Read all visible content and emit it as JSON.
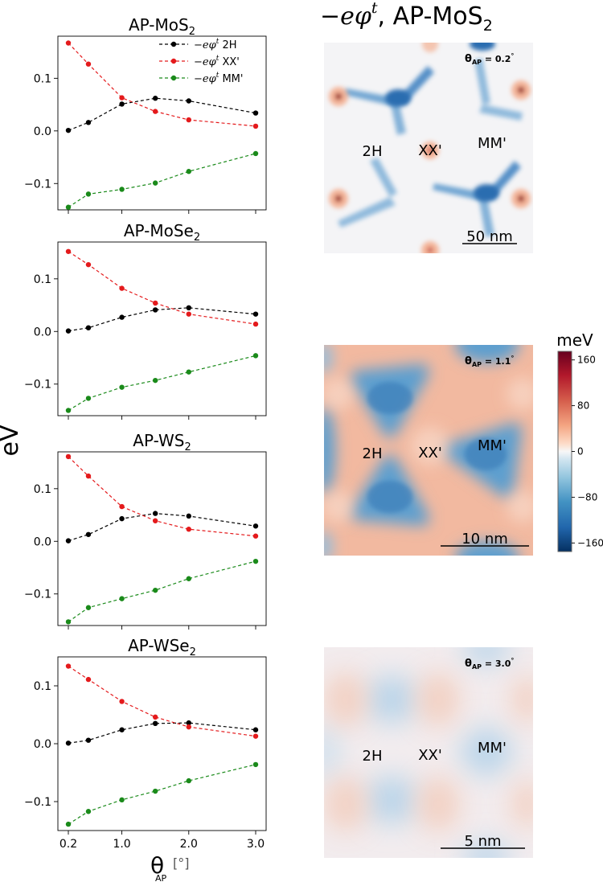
{
  "figure": {
    "ylabel": "eV",
    "xlabel": "θ",
    "xlabel_sub": "AP",
    "xlabel_unit": "[°]",
    "map_title": "−eφ",
    "map_title_sup": "t",
    "map_title_rest": ", AP-MoS",
    "map_title_sub": "2"
  },
  "legend": {
    "prefix": "−eφ",
    "sup": "t",
    "entries": [
      {
        "label": "2H",
        "color": "#000000"
      },
      {
        "label": "XX'",
        "color": "#e41a1c"
      },
      {
        "label": "MM'",
        "color": "#1a8a1a"
      }
    ]
  },
  "chart_data": [
    {
      "type": "line",
      "title": "AP-MoS",
      "title_sub": "2",
      "x": [
        0.2,
        0.5,
        1.0,
        1.5,
        2.0,
        3.0
      ],
      "ylim": [
        -0.15,
        0.18
      ],
      "yticks": [
        -0.1,
        0.0,
        0.1
      ],
      "xticks": [
        0.2,
        1.0,
        2.0,
        3.0
      ],
      "series": [
        {
          "name": "2H",
          "color": "#000000",
          "values": [
            0.001,
            0.016,
            0.051,
            0.062,
            0.057,
            0.034
          ]
        },
        {
          "name": "XX'",
          "color": "#e41a1c",
          "values": [
            0.167,
            0.127,
            0.063,
            0.037,
            0.021,
            0.009
          ]
        },
        {
          "name": "MM'",
          "color": "#1a8a1a",
          "values": [
            -0.145,
            -0.12,
            -0.111,
            -0.099,
            -0.077,
            -0.043
          ]
        }
      ]
    },
    {
      "type": "line",
      "title": "AP-MoSe",
      "title_sub": "2",
      "x": [
        0.2,
        0.5,
        1.0,
        1.5,
        2.0,
        3.0
      ],
      "ylim": [
        -0.16,
        0.17
      ],
      "yticks": [
        -0.1,
        0.0,
        0.1
      ],
      "xticks": [
        0.2,
        1.0,
        2.0,
        3.0
      ],
      "series": [
        {
          "name": "2H",
          "color": "#000000",
          "values": [
            0.001,
            0.007,
            0.027,
            0.041,
            0.045,
            0.033
          ]
        },
        {
          "name": "XX'",
          "color": "#e41a1c",
          "values": [
            0.152,
            0.127,
            0.082,
            0.054,
            0.033,
            0.014
          ]
        },
        {
          "name": "MM'",
          "color": "#1a8a1a",
          "values": [
            -0.15,
            -0.127,
            -0.106,
            -0.093,
            -0.077,
            -0.046
          ]
        }
      ]
    },
    {
      "type": "line",
      "title": "AP-WS",
      "title_sub": "2",
      "x": [
        0.2,
        0.5,
        1.0,
        1.5,
        2.0,
        3.0
      ],
      "ylim": [
        -0.16,
        0.17
      ],
      "yticks": [
        -0.1,
        0.0,
        0.1
      ],
      "xticks": [
        0.2,
        1.0,
        2.0,
        3.0
      ],
      "series": [
        {
          "name": "2H",
          "color": "#000000",
          "values": [
            0.001,
            0.013,
            0.043,
            0.053,
            0.048,
            0.029
          ]
        },
        {
          "name": "XX'",
          "color": "#e41a1c",
          "values": [
            0.161,
            0.124,
            0.066,
            0.039,
            0.023,
            0.01
          ]
        },
        {
          "name": "MM'",
          "color": "#1a8a1a",
          "values": [
            -0.153,
            -0.126,
            -0.109,
            -0.093,
            -0.071,
            -0.038
          ]
        }
      ]
    },
    {
      "type": "line",
      "title": "AP-WSe",
      "title_sub": "2",
      "x": [
        0.2,
        0.5,
        1.0,
        1.5,
        2.0,
        3.0
      ],
      "ylim": [
        -0.15,
        0.15
      ],
      "yticks": [
        -0.1,
        0.0,
        0.1
      ],
      "xticks": [
        0.2,
        1.0,
        2.0,
        3.0
      ],
      "series": [
        {
          "name": "2H",
          "color": "#000000",
          "values": [
            0.001,
            0.006,
            0.024,
            0.035,
            0.036,
            0.024
          ]
        },
        {
          "name": "XX'",
          "color": "#e41a1c",
          "values": [
            0.134,
            0.111,
            0.073,
            0.046,
            0.029,
            0.013
          ]
        },
        {
          "name": "MM'",
          "color": "#1a8a1a",
          "values": [
            -0.139,
            -0.117,
            -0.097,
            -0.082,
            -0.064,
            -0.036
          ]
        }
      ]
    }
  ],
  "maps": [
    {
      "angle_label": "θ",
      "angle_sub": "AP",
      "angle_value": "= 0.2",
      "angle_unit": "°",
      "scale": "50 nm",
      "sites": [
        "2H",
        "XX'",
        "MM'"
      ],
      "contrast": 1.0
    },
    {
      "angle_label": "θ",
      "angle_sub": "AP",
      "angle_value": "= 1.1",
      "angle_unit": "°",
      "scale": "10 nm",
      "sites": [
        "2H",
        "XX'",
        "MM'"
      ],
      "contrast": 0.8
    },
    {
      "angle_label": "θ",
      "angle_sub": "AP",
      "angle_value": "= 3.0",
      "angle_unit": "°",
      "scale": "5 nm",
      "sites": [
        "2H",
        "XX'",
        "MM'"
      ],
      "contrast": 0.3
    }
  ],
  "colorbar": {
    "title": "meV",
    "range": [
      -175,
      175
    ],
    "ticks": [
      "160",
      "80",
      "0",
      "−80",
      "−160"
    ],
    "tick_values": [
      160,
      80,
      0,
      -80,
      -160
    ],
    "colormap": "RdBu_r"
  }
}
